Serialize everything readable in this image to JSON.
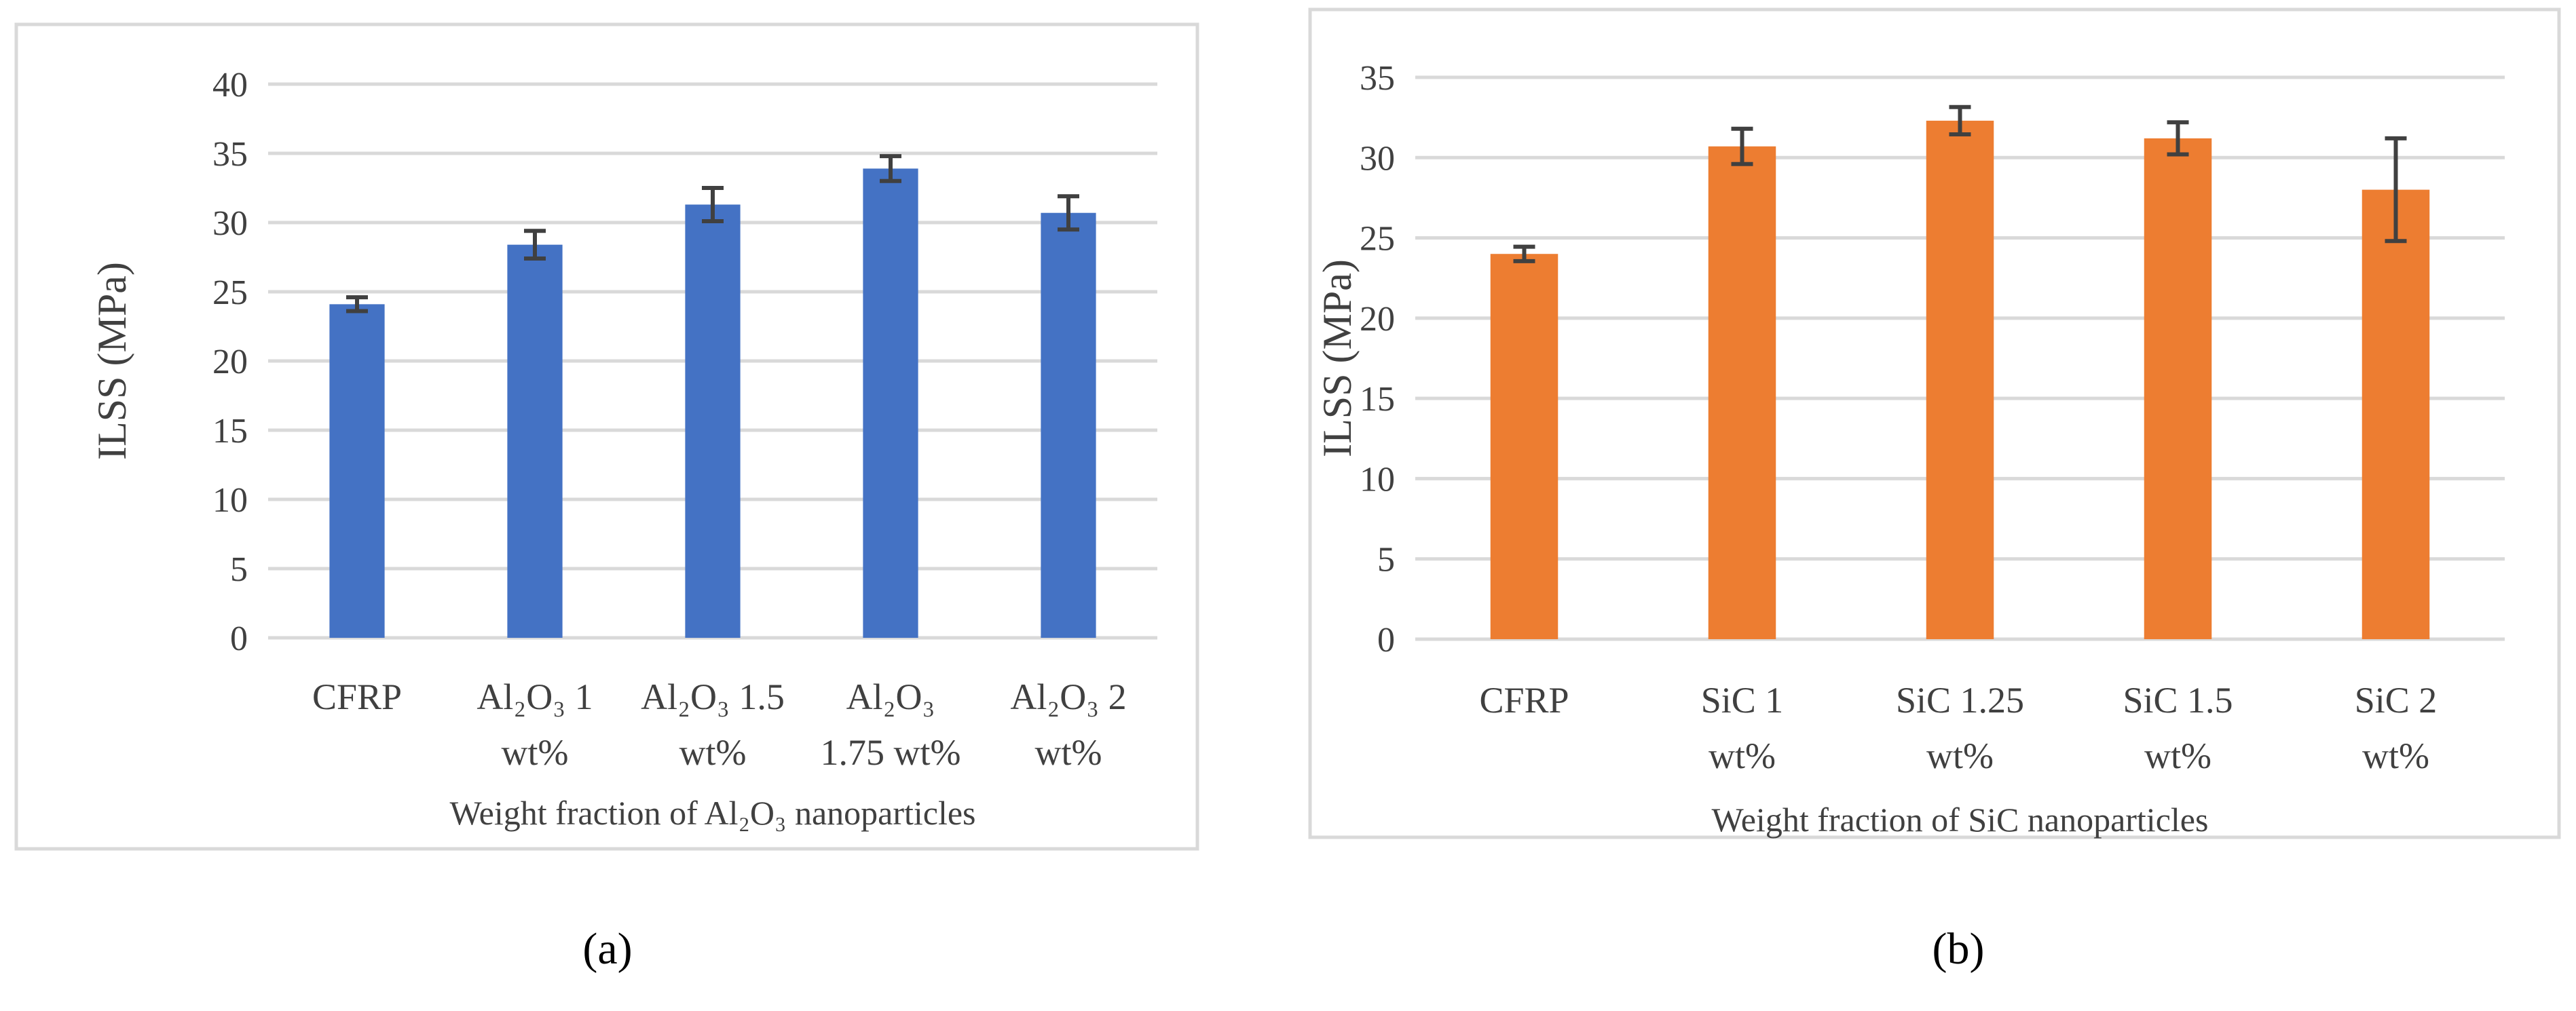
{
  "chart_data": [
    {
      "panel_label": "(a)",
      "type": "bar",
      "color": "#4472C4",
      "ylabel": "ILSS (MPa)",
      "xlabel": "Weight fraction of Al₂O₃ nanoparticles",
      "ylim": [
        0,
        40
      ],
      "yticks": [
        0,
        5,
        10,
        15,
        20,
        25,
        30,
        35,
        40
      ],
      "grid": true,
      "categories": [
        [
          "CFRP"
        ],
        [
          "Al₂O₃ 1",
          "wt%"
        ],
        [
          "Al₂O₃ 1.5",
          "wt%"
        ],
        [
          "Al₂O₃",
          "1.75 wt%"
        ],
        [
          "Al₂O₃ 2",
          "wt%"
        ]
      ],
      "values": [
        24.1,
        28.4,
        31.3,
        33.9,
        30.7
      ],
      "errors": [
        0.5,
        1.0,
        1.2,
        0.9,
        1.2
      ]
    },
    {
      "panel_label": "(b)",
      "type": "bar",
      "color": "#ED7D31",
      "ylabel": "ILSS (MPa)",
      "xlabel": "Weight fraction of SiC nanoparticles",
      "ylim": [
        0,
        35
      ],
      "yticks": [
        0,
        5,
        10,
        15,
        20,
        25,
        30,
        35
      ],
      "grid": true,
      "categories": [
        [
          "CFRP"
        ],
        [
          "SiC 1",
          "wt%"
        ],
        [
          "SiC 1.25",
          "wt%"
        ],
        [
          "SiC 1.5",
          "wt%"
        ],
        [
          "SiC 2",
          "wt%"
        ]
      ],
      "values": [
        24.0,
        30.7,
        32.3,
        31.2,
        28.0
      ],
      "errors": [
        0.45,
        1.1,
        0.85,
        1.0,
        3.2
      ]
    }
  ]
}
